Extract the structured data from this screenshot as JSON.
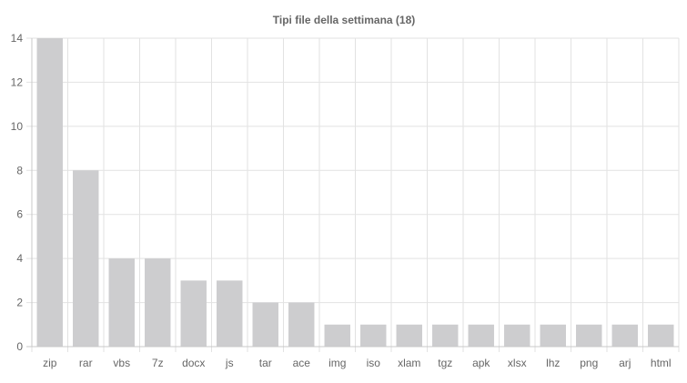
{
  "chart_data": {
    "type": "bar",
    "title": "Tipi file della settimana (18)",
    "categories": [
      "zip",
      "rar",
      "vbs",
      "7z",
      "docx",
      "js",
      "tar",
      "ace",
      "img",
      "iso",
      "xlam",
      "tgz",
      "apk",
      "xlsx",
      "lhz",
      "png",
      "arj",
      "html"
    ],
    "values": [
      14,
      8,
      4,
      4,
      3,
      3,
      2,
      2,
      1,
      1,
      1,
      1,
      1,
      1,
      1,
      1,
      1,
      1
    ],
    "ylim": [
      0,
      14
    ],
    "yticks": [
      0,
      2,
      4,
      6,
      8,
      10,
      12,
      14
    ],
    "grid": true,
    "bar_color": "#cdcdcf",
    "grid_color": "#e2e2e2"
  }
}
